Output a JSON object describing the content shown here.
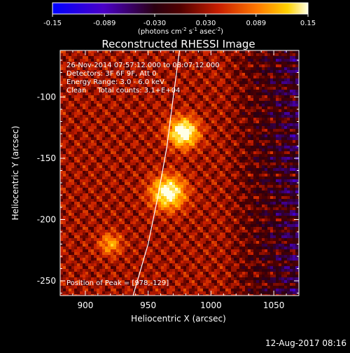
{
  "chart_data": {
    "type": "heatmap",
    "title": "Reconstructed RHESSI Image",
    "xlabel": "Heliocentric X (arcsec)",
    "ylabel": "Heliocentric Y (arcsec)",
    "xlim": [
      880,
      1070
    ],
    "ylim": [
      -262,
      -62
    ],
    "xticks": [
      900,
      950,
      1000,
      1050
    ],
    "yticks": [
      -100,
      -150,
      -200,
      -250
    ],
    "colorbar": {
      "ticks": [
        -0.15,
        -0.089,
        -0.03,
        0.03,
        0.089,
        0.15
      ],
      "tick_labels": [
        "-0.15",
        "-0.089",
        "-0.030",
        "0.030",
        "0.089",
        "0.15"
      ],
      "unit_label": "(photons cm",
      "unit_exp1": "-2",
      "unit_mid": " s",
      "unit_exp2": "-1",
      "unit_tail": " asec",
      "unit_exp3": "-2",
      "unit_close": ")"
    },
    "annotations": [
      "26-Nov-2014 07:57:12.000 to 08:07:12.000",
      "Detectors: 3F 6F 9F, Att 0",
      "Energy Range: 3.0 - 6.0 keV",
      "Clean     Total counts: 3.1+E+04"
    ],
    "peak_label": "Position of Peak = [978,-129]",
    "sources": [
      {
        "x": 978,
        "y": -129,
        "sigma": 8,
        "peak": 0.15
      },
      {
        "x": 966,
        "y": -178,
        "sigma": 9,
        "peak": 0.14
      },
      {
        "x": 920,
        "y": -220,
        "sigma": 6,
        "peak": 0.07
      }
    ],
    "limb": [
      [
        938,
        -262
      ],
      [
        950,
        -220
      ],
      [
        958,
        -180
      ],
      [
        965,
        -140
      ],
      [
        970,
        -100
      ],
      [
        975,
        -62
      ]
    ]
  },
  "footer": {
    "timestamp": "12-Aug-2017 08:16"
  }
}
